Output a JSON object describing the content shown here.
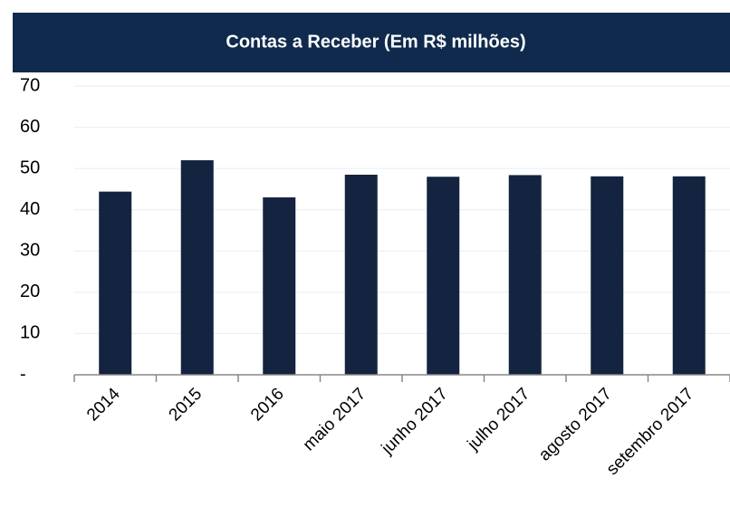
{
  "chart_data": {
    "type": "bar",
    "title": "Contas a Receber (Em R$ milhões)",
    "categories": [
      "2014",
      "2015",
      "2016",
      "maio 2017",
      "junho 2017",
      "julho 2017",
      "agosto 2017",
      "setembro 2017"
    ],
    "values": [
      44.4,
      52,
      43,
      48.5,
      48,
      48.4,
      48.1,
      48.1
    ],
    "color": "#14233f",
    "ylim": [
      0,
      70
    ],
    "yticks": [
      {
        "value": 0,
        "label": "-"
      },
      10,
      20,
      30,
      40,
      50,
      60,
      70
    ],
    "grid": true
  }
}
